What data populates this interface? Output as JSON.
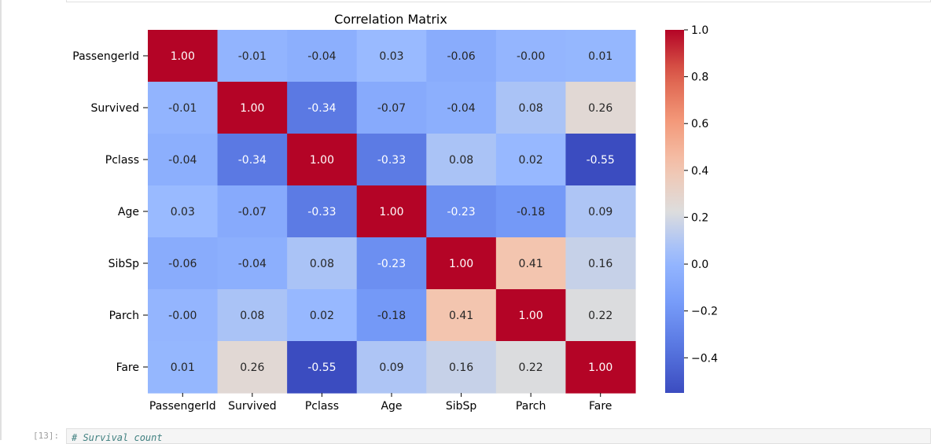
{
  "chart_data": {
    "type": "heatmap",
    "title": "Correlation Matrix",
    "rows": [
      "PassengerId",
      "Survived",
      "Pclass",
      "Age",
      "SibSp",
      "Parch",
      "Fare"
    ],
    "columns": [
      "PassengerId",
      "Survived",
      "Pclass",
      "Age",
      "SibSp",
      "Parch",
      "Fare"
    ],
    "values": [
      [
        1.0,
        -0.01,
        -0.04,
        0.03,
        -0.06,
        -0.0,
        0.01
      ],
      [
        -0.01,
        1.0,
        -0.34,
        -0.07,
        -0.04,
        0.08,
        0.26
      ],
      [
        -0.04,
        -0.34,
        1.0,
        -0.33,
        0.08,
        0.02,
        -0.55
      ],
      [
        0.03,
        -0.07,
        -0.33,
        1.0,
        -0.23,
        -0.18,
        0.09
      ],
      [
        -0.06,
        -0.04,
        0.08,
        -0.23,
        1.0,
        0.41,
        0.16
      ],
      [
        -0.0,
        0.08,
        0.02,
        -0.18,
        0.41,
        1.0,
        0.22
      ],
      [
        0.01,
        0.26,
        -0.55,
        0.09,
        0.16,
        0.22,
        1.0
      ]
    ],
    "value_labels": [
      [
        "1.00",
        "-0.01",
        "-0.04",
        "0.03",
        "-0.06",
        "-0.00",
        "0.01"
      ],
      [
        "-0.01",
        "1.00",
        "-0.34",
        "-0.07",
        "-0.04",
        "0.08",
        "0.26"
      ],
      [
        "-0.04",
        "-0.34",
        "1.00",
        "-0.33",
        "0.08",
        "0.02",
        "-0.55"
      ],
      [
        "0.03",
        "-0.07",
        "-0.33",
        "1.00",
        "-0.23",
        "-0.18",
        "0.09"
      ],
      [
        "-0.06",
        "-0.04",
        "0.08",
        "-0.23",
        "1.00",
        "0.41",
        "0.16"
      ],
      [
        "-0.00",
        "0.08",
        "0.02",
        "-0.18",
        "0.41",
        "1.00",
        "0.22"
      ],
      [
        "0.01",
        "0.26",
        "-0.55",
        "0.09",
        "0.16",
        "0.22",
        "1.00"
      ]
    ],
    "colormap": "coolwarm",
    "color_range": [
      -0.55,
      1.0
    ],
    "colorbar": {
      "ticks": [
        -0.4,
        -0.2,
        0.0,
        0.2,
        0.4,
        0.6,
        0.8,
        1.0
      ],
      "tick_labels": [
        "−0.4",
        "−0.2",
        "0.0",
        "0.2",
        "0.4",
        "0.6",
        "0.8",
        "1.0"
      ]
    },
    "annotations": true,
    "legend_placement": "right"
  },
  "next_cell": {
    "prompt": "[13]:",
    "code": "# Survival count"
  }
}
